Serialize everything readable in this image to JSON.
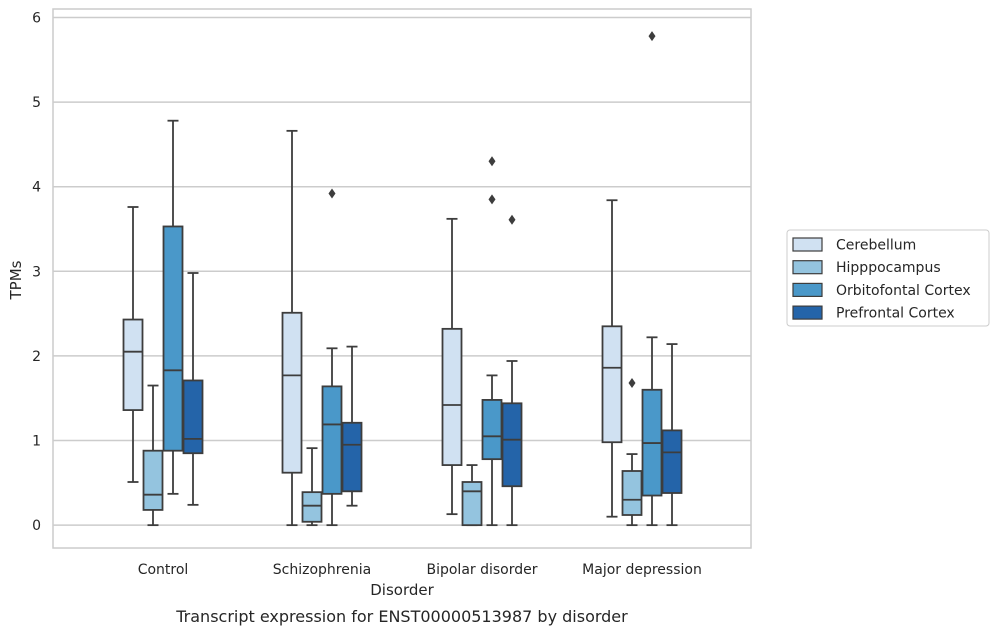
{
  "chart_data": {
    "type": "box",
    "title": "Transcript expression for ENST00000513987 by disorder",
    "xlabel": "Disorder",
    "ylabel": "TPMs",
    "ylim": [
      -0.27,
      6.1
    ],
    "yticks": [
      0,
      1,
      2,
      3,
      4,
      5,
      6
    ],
    "grid": "horizontal",
    "legend_position": "right",
    "categories": [
      "Control",
      "Schizophrenia",
      "Bipolar disorder",
      "Major depression"
    ],
    "series": [
      {
        "name": "Cerebellum",
        "color": "#d0e1f2",
        "boxes": [
          {
            "whislo": 0.51,
            "q1": 1.36,
            "med": 2.05,
            "q3": 2.43,
            "whishi": 3.76,
            "fliers": []
          },
          {
            "whislo": 0.0,
            "q1": 0.62,
            "med": 1.77,
            "q3": 2.51,
            "whishi": 4.66,
            "fliers": []
          },
          {
            "whislo": 0.13,
            "q1": 0.71,
            "med": 1.42,
            "q3": 2.32,
            "whishi": 3.62,
            "fliers": []
          },
          {
            "whislo": 0.1,
            "q1": 0.98,
            "med": 1.86,
            "q3": 2.35,
            "whishi": 3.84,
            "fliers": []
          }
        ]
      },
      {
        "name": "Hipppocampus",
        "color": "#94c4df",
        "boxes": [
          {
            "whislo": 0.0,
            "q1": 0.18,
            "med": 0.36,
            "q3": 0.88,
            "whishi": 1.65,
            "fliers": []
          },
          {
            "whislo": 0.0,
            "q1": 0.04,
            "med": 0.23,
            "q3": 0.39,
            "whishi": 0.91,
            "fliers": []
          },
          {
            "whislo": 0.0,
            "q1": 0.0,
            "med": 0.4,
            "q3": 0.51,
            "whishi": 0.71,
            "fliers": []
          },
          {
            "whislo": 0.0,
            "q1": 0.12,
            "med": 0.3,
            "q3": 0.64,
            "whishi": 0.84,
            "fliers": [
              1.68
            ]
          }
        ]
      },
      {
        "name": "Orbitofontal Cortex",
        "color": "#4a98c9",
        "boxes": [
          {
            "whislo": 0.37,
            "q1": 0.88,
            "med": 1.83,
            "q3": 3.53,
            "whishi": 4.78,
            "fliers": []
          },
          {
            "whislo": 0.0,
            "q1": 0.37,
            "med": 1.19,
            "q3": 1.64,
            "whishi": 2.09,
            "fliers": [
              3.92
            ]
          },
          {
            "whislo": 0.0,
            "q1": 0.78,
            "med": 1.05,
            "q3": 1.48,
            "whishi": 1.77,
            "fliers": [
              3.85,
              4.3
            ]
          },
          {
            "whislo": 0.0,
            "q1": 0.35,
            "med": 0.97,
            "q3": 1.6,
            "whishi": 2.22,
            "fliers": [
              5.78
            ]
          }
        ]
      },
      {
        "name": "Prefrontal Cortex",
        "color": "#2464a9",
        "boxes": [
          {
            "whislo": 0.24,
            "q1": 0.85,
            "med": 1.02,
            "q3": 1.71,
            "whishi": 2.98,
            "fliers": []
          },
          {
            "whislo": 0.23,
            "q1": 0.4,
            "med": 0.95,
            "q3": 1.21,
            "whishi": 2.11,
            "fliers": []
          },
          {
            "whislo": 0.0,
            "q1": 0.46,
            "med": 1.01,
            "q3": 1.44,
            "whishi": 1.94,
            "fliers": [
              3.61
            ]
          },
          {
            "whislo": 0.0,
            "q1": 0.38,
            "med": 0.86,
            "q3": 1.12,
            "whishi": 2.14,
            "fliers": []
          }
        ]
      }
    ]
  },
  "colors": {
    "grid": "#cccccc",
    "frame": "#cccccc",
    "box_edge": "#3d3d3d",
    "text": "#262626"
  }
}
